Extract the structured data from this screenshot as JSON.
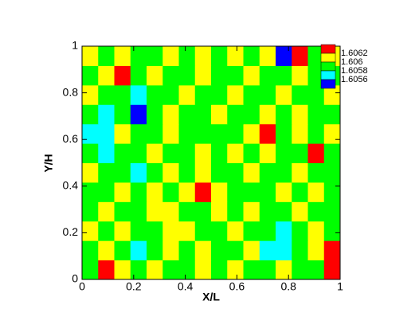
{
  "chart_data": {
    "type": "contour",
    "xlabel": "X/L",
    "ylabel": "Y/H",
    "xlim": [
      0,
      1
    ],
    "ylim": [
      0,
      1
    ],
    "xticks": [
      0,
      0.2,
      0.4,
      0.6,
      0.8,
      1
    ],
    "yticks": [
      0,
      0.2,
      0.4,
      0.6,
      0.8,
      1
    ],
    "levels": [
      1.6062,
      1.606,
      1.6058,
      1.6056
    ],
    "band_colors": [
      "#ff0000",
      "#ffff00",
      "#00ff00",
      "#00ffff",
      "#0000ff"
    ],
    "legend": "upper right",
    "z": [
      [
        1.6059,
        1.6063,
        1.6061,
        1.6059,
        1.6061,
        1.6059,
        1.6059,
        1.6061,
        1.6059,
        1.6061,
        1.6059,
        1.6059,
        1.6061,
        1.6059,
        1.6059,
        1.6063
      ],
      [
        1.6059,
        1.6061,
        1.6059,
        1.6057,
        1.6059,
        1.6061,
        1.6059,
        1.6061,
        1.6059,
        1.6059,
        1.6061,
        1.6057,
        1.6057,
        1.6059,
        1.6061,
        1.6063
      ],
      [
        1.6061,
        1.6059,
        1.6061,
        1.6059,
        1.6059,
        1.6061,
        1.6061,
        1.6059,
        1.6059,
        1.6061,
        1.6059,
        1.6059,
        1.6057,
        1.6059,
        1.6061,
        1.6059
      ],
      [
        1.6059,
        1.6061,
        1.6059,
        1.6059,
        1.6061,
        1.6061,
        1.6059,
        1.6059,
        1.6061,
        1.6059,
        1.6061,
        1.6059,
        1.6059,
        1.6061,
        1.6059,
        1.6059
      ],
      [
        1.6059,
        1.6059,
        1.6061,
        1.6059,
        1.6061,
        1.6059,
        1.6061,
        1.6063,
        1.6061,
        1.6059,
        1.6059,
        1.6059,
        1.6061,
        1.6059,
        1.6061,
        1.6059
      ],
      [
        1.6061,
        1.6059,
        1.6059,
        1.6057,
        1.6059,
        1.6061,
        1.6059,
        1.6061,
        1.6059,
        1.6059,
        1.6061,
        1.6059,
        1.6059,
        1.6061,
        1.6059,
        1.6059
      ],
      [
        1.6059,
        1.6057,
        1.6059,
        1.6059,
        1.6061,
        1.6059,
        1.6059,
        1.6061,
        1.6059,
        1.6061,
        1.6059,
        1.6061,
        1.6059,
        1.6059,
        1.6063,
        1.6059
      ],
      [
        1.6057,
        1.6057,
        1.6061,
        1.6059,
        1.6059,
        1.6061,
        1.6059,
        1.6059,
        1.6059,
        1.6059,
        1.6061,
        1.6063,
        1.6059,
        1.6061,
        1.6059,
        1.6061
      ],
      [
        1.6059,
        1.6057,
        1.6059,
        1.6055,
        1.6059,
        1.6061,
        1.6059,
        1.6059,
        1.6061,
        1.6059,
        1.6059,
        1.6061,
        1.6059,
        1.6061,
        1.6059,
        1.6059
      ],
      [
        1.6061,
        1.6059,
        1.6059,
        1.6057,
        1.6059,
        1.6059,
        1.6061,
        1.6059,
        1.6059,
        1.6061,
        1.6059,
        1.6059,
        1.6061,
        1.6059,
        1.6059,
        1.6061
      ],
      [
        1.6059,
        1.6061,
        1.6063,
        1.6059,
        1.6061,
        1.6059,
        1.6059,
        1.6061,
        1.6059,
        1.6059,
        1.6061,
        1.6059,
        1.6059,
        1.6061,
        1.6059,
        1.6059
      ],
      [
        1.6061,
        1.6059,
        1.6061,
        1.6059,
        1.6059,
        1.6061,
        1.6059,
        1.6061,
        1.6059,
        1.6061,
        1.6059,
        1.6061,
        1.6055,
        1.6063,
        1.6059,
        1.6061
      ]
    ]
  }
}
